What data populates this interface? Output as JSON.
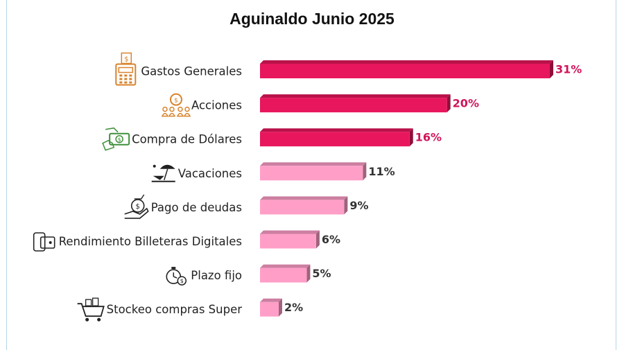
{
  "chart_data": {
    "type": "bar",
    "orientation": "horizontal",
    "title": "Aguinaldo Junio 2025",
    "categories": [
      "Gastos Generales",
      "Acciones",
      "Compra de Dólares",
      "Vacaciones",
      "Pago de deudas",
      "Rendimiento Billeteras Digitales",
      "Plazo fijo",
      "Stockeo compras Super"
    ],
    "values": [
      31,
      20,
      16,
      11,
      9,
      6,
      5,
      2
    ],
    "value_labels": [
      "31%",
      "20%",
      "16%",
      "11%",
      "9%",
      "6%",
      "5%",
      "2%"
    ],
    "icons": [
      "cash-register-icon",
      "money-bag-investors-icon",
      "hand-dollar-bill-icon",
      "beach-umbrella-icon",
      "hand-money-bag-icon",
      "phone-wallet-icon",
      "stopwatch-coin-icon",
      "shopping-cart-icon"
    ],
    "highlight_count": 3,
    "colors": {
      "highlight": "#e8175d",
      "highlight_label": "#d0145a",
      "normal": "#ff9fc8",
      "normal_label": "#333333"
    },
    "xlim": [
      0,
      31
    ],
    "grid": false,
    "legend": "none"
  }
}
